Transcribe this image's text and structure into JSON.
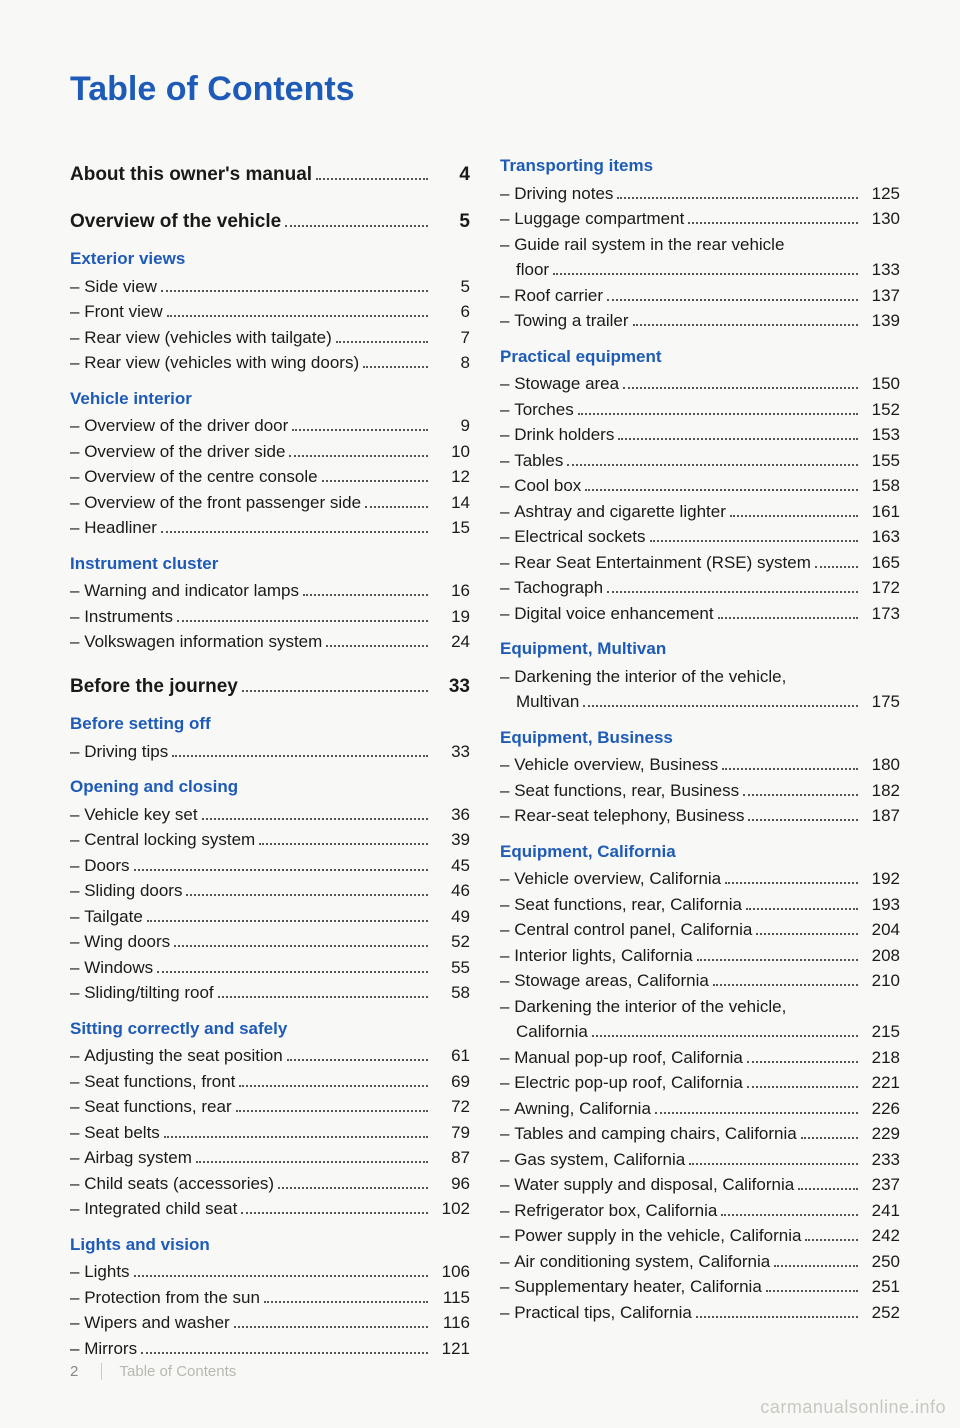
{
  "title": "Table of Contents",
  "footer": {
    "pageNumber": "2",
    "label": "Table of Contents"
  },
  "watermark": "carmanualsonline.info",
  "colors": {
    "heading": "#1e5bb8",
    "text": "#1a1a1a",
    "background": "#f8f8f6"
  },
  "columns": [
    [
      {
        "type": "l1",
        "label": "About this owner's manual",
        "page": "4"
      },
      {
        "type": "l1",
        "label": "Overview of the vehicle",
        "page": "5"
      },
      {
        "type": "l2",
        "label": "Exterior views"
      },
      {
        "type": "item",
        "label": "Side view",
        "page": "5"
      },
      {
        "type": "item",
        "label": "Front view",
        "page": "6"
      },
      {
        "type": "item",
        "label": "Rear view (vehicles with tailgate)",
        "page": "7"
      },
      {
        "type": "item",
        "label": "Rear view (vehicles with wing doors)",
        "page": "8"
      },
      {
        "type": "l2",
        "label": "Vehicle interior"
      },
      {
        "type": "item",
        "label": "Overview of the driver door",
        "page": "9"
      },
      {
        "type": "item",
        "label": "Overview of the driver side",
        "page": "10"
      },
      {
        "type": "item",
        "label": "Overview of the centre console",
        "page": "12"
      },
      {
        "type": "item",
        "label": "Overview of the front passenger side",
        "page": "14"
      },
      {
        "type": "item",
        "label": "Headliner",
        "page": "15"
      },
      {
        "type": "l2",
        "label": "Instrument cluster"
      },
      {
        "type": "item",
        "label": "Warning and indicator lamps",
        "page": "16"
      },
      {
        "type": "item",
        "label": "Instruments",
        "page": "19"
      },
      {
        "type": "item",
        "label": "Volkswagen information system",
        "page": "24"
      },
      {
        "type": "l1",
        "label": "Before the journey",
        "page": "33"
      },
      {
        "type": "l2",
        "label": "Before setting off"
      },
      {
        "type": "item",
        "label": "Driving tips",
        "page": "33"
      },
      {
        "type": "l2",
        "label": "Opening and closing"
      },
      {
        "type": "item",
        "label": "Vehicle key set",
        "page": "36"
      },
      {
        "type": "item",
        "label": "Central locking system",
        "page": "39"
      },
      {
        "type": "item",
        "label": "Doors",
        "page": "45"
      },
      {
        "type": "item",
        "label": "Sliding doors",
        "page": "46"
      },
      {
        "type": "item",
        "label": "Tailgate",
        "page": "49"
      },
      {
        "type": "item",
        "label": "Wing doors",
        "page": "52"
      },
      {
        "type": "item",
        "label": "Windows",
        "page": "55"
      },
      {
        "type": "item",
        "label": "Sliding/tilting roof",
        "page": "58"
      },
      {
        "type": "l2",
        "label": "Sitting correctly and safely"
      },
      {
        "type": "item",
        "label": "Adjusting the seat position",
        "page": "61"
      },
      {
        "type": "item",
        "label": "Seat functions, front",
        "page": "69"
      },
      {
        "type": "item",
        "label": "Seat functions, rear",
        "page": "72"
      },
      {
        "type": "item",
        "label": "Seat belts",
        "page": "79"
      },
      {
        "type": "item",
        "label": "Airbag system",
        "page": "87"
      },
      {
        "type": "item",
        "label": "Child seats (accessories)",
        "page": "96"
      },
      {
        "type": "item",
        "label": "Integrated child seat",
        "page": "102"
      },
      {
        "type": "l2",
        "label": "Lights and vision"
      },
      {
        "type": "item",
        "label": "Lights",
        "page": "106"
      },
      {
        "type": "item",
        "label": "Protection from the sun",
        "page": "115"
      },
      {
        "type": "item",
        "label": "Wipers and washer",
        "page": "116"
      },
      {
        "type": "item",
        "label": "Mirrors",
        "page": "121"
      }
    ],
    [
      {
        "type": "l2",
        "label": "Transporting items"
      },
      {
        "type": "item",
        "label": "Driving notes",
        "page": "125"
      },
      {
        "type": "item",
        "label": "Luggage compartment",
        "page": "130"
      },
      {
        "type": "item",
        "label": "Guide rail system in the rear vehicle"
      },
      {
        "type": "cont",
        "label": "floor",
        "page": "133"
      },
      {
        "type": "item",
        "label": "Roof carrier",
        "page": "137"
      },
      {
        "type": "item",
        "label": "Towing a trailer",
        "page": "139"
      },
      {
        "type": "l2",
        "label": "Practical equipment"
      },
      {
        "type": "item",
        "label": "Stowage area",
        "page": "150"
      },
      {
        "type": "item",
        "label": "Torches",
        "page": "152"
      },
      {
        "type": "item",
        "label": "Drink holders",
        "page": "153"
      },
      {
        "type": "item",
        "label": "Tables",
        "page": "155"
      },
      {
        "type": "item",
        "label": "Cool box",
        "page": "158"
      },
      {
        "type": "item",
        "label": "Ashtray and cigarette lighter",
        "page": "161"
      },
      {
        "type": "item",
        "label": "Electrical sockets",
        "page": "163"
      },
      {
        "type": "item",
        "label": "Rear Seat Entertainment (RSE) system",
        "page": "165"
      },
      {
        "type": "item",
        "label": "Tachograph",
        "page": "172"
      },
      {
        "type": "item",
        "label": "Digital voice enhancement",
        "page": "173"
      },
      {
        "type": "l2",
        "label": "Equipment, Multivan"
      },
      {
        "type": "item",
        "label": "Darkening the interior of the vehicle,"
      },
      {
        "type": "cont",
        "label": "Multivan",
        "page": "175"
      },
      {
        "type": "l2",
        "label": "Equipment, Business"
      },
      {
        "type": "item",
        "label": "Vehicle overview, Business",
        "page": "180"
      },
      {
        "type": "item",
        "label": "Seat functions, rear, Business",
        "page": "182"
      },
      {
        "type": "item",
        "label": "Rear-seat telephony, Business",
        "page": "187"
      },
      {
        "type": "l2",
        "label": "Equipment, California"
      },
      {
        "type": "item",
        "label": "Vehicle overview, California",
        "page": "192"
      },
      {
        "type": "item",
        "label": "Seat functions, rear, California",
        "page": "193"
      },
      {
        "type": "item",
        "label": "Central control panel, California",
        "page": "204"
      },
      {
        "type": "item",
        "label": "Interior lights, California",
        "page": "208"
      },
      {
        "type": "item",
        "label": "Stowage areas, California",
        "page": "210"
      },
      {
        "type": "item",
        "label": "Darkening the interior of the vehicle,"
      },
      {
        "type": "cont",
        "label": "California",
        "page": "215"
      },
      {
        "type": "item",
        "label": "Manual pop-up roof, California",
        "page": "218"
      },
      {
        "type": "item",
        "label": "Electric pop-up roof, California",
        "page": "221"
      },
      {
        "type": "item",
        "label": "Awning, California",
        "page": "226"
      },
      {
        "type": "item",
        "label": "Tables and camping chairs, California",
        "page": "229"
      },
      {
        "type": "item",
        "label": "Gas system, California",
        "page": "233"
      },
      {
        "type": "item",
        "label": "Water supply and disposal, California",
        "page": "237"
      },
      {
        "type": "item",
        "label": "Refrigerator box, California",
        "page": "241"
      },
      {
        "type": "item",
        "label": "Power supply in the vehicle, California",
        "page": "242"
      },
      {
        "type": "item",
        "label": "Air conditioning system, California",
        "page": "250"
      },
      {
        "type": "item",
        "label": "Supplementary heater, California",
        "page": "251"
      },
      {
        "type": "item",
        "label": "Practical tips, California",
        "page": "252"
      }
    ]
  ]
}
